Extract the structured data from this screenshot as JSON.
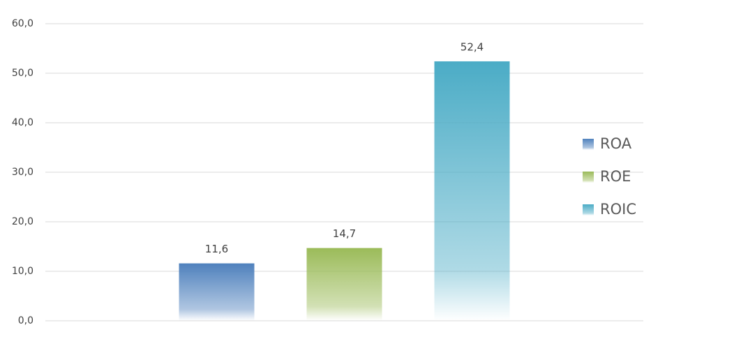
{
  "chart_data": {
    "type": "bar",
    "categories": [
      null
    ],
    "series": [
      {
        "name": "ROA",
        "color": "#4f81bd",
        "values": [
          11.6
        ],
        "value_labels": [
          "11,6"
        ]
      },
      {
        "name": "ROE",
        "color": "#9bbb59",
        "values": [
          14.7
        ],
        "value_labels": [
          "14,7"
        ]
      },
      {
        "name": "ROIC",
        "color": "#4bacc6",
        "values": [
          52.4
        ],
        "value_labels": [
          "52,4"
        ]
      }
    ],
    "ylim": [
      0,
      60
    ],
    "yticks": [
      {
        "value": 0,
        "label": "0,0"
      },
      {
        "value": 10,
        "label": "10,0"
      },
      {
        "value": 20,
        "label": "20,0"
      },
      {
        "value": 30,
        "label": "30,0"
      },
      {
        "value": 40,
        "label": "40,0"
      },
      {
        "value": 50,
        "label": "50,0"
      },
      {
        "value": 60,
        "label": "60,0"
      }
    ],
    "grid": true,
    "legend": "right"
  }
}
